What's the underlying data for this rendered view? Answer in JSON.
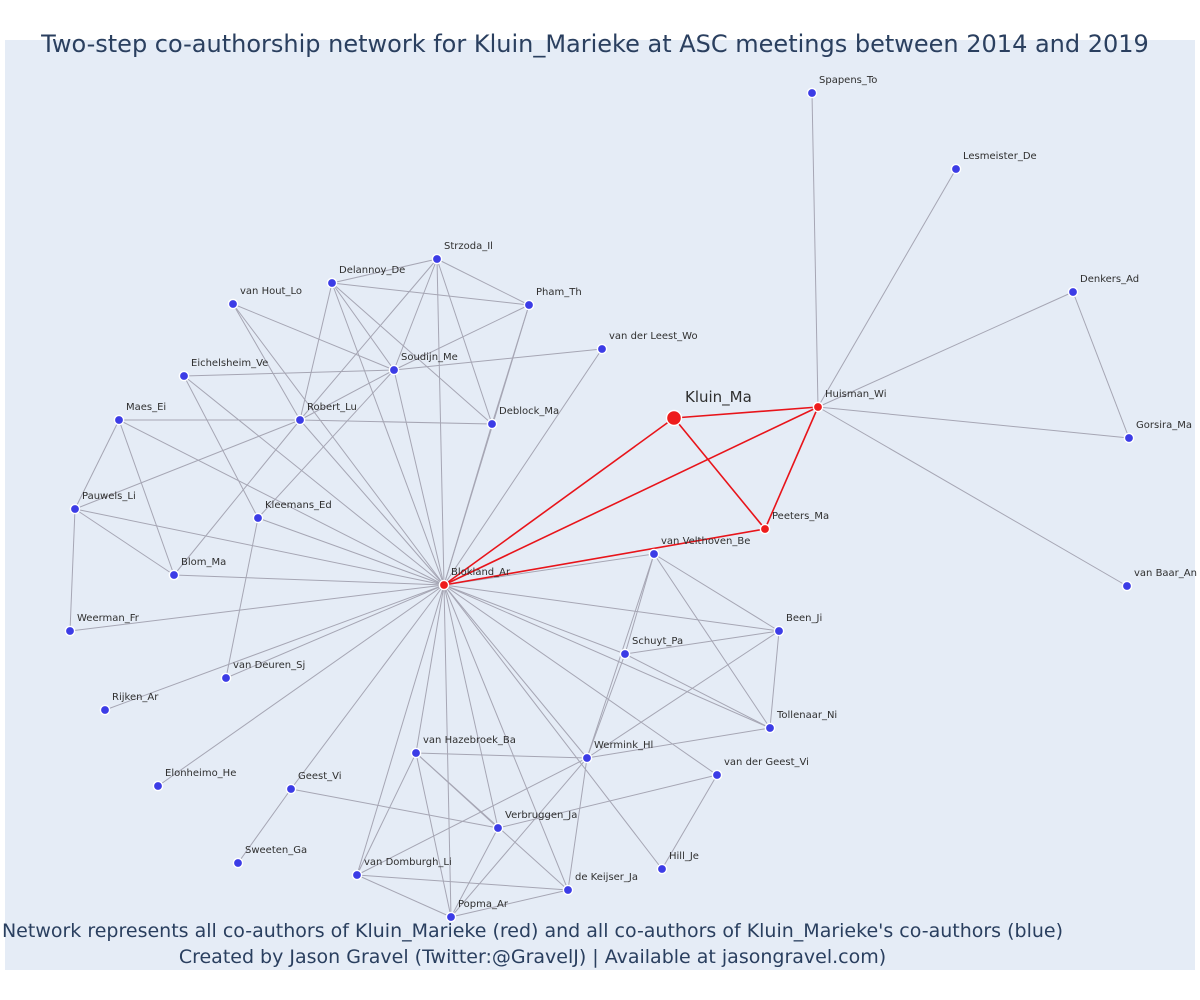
{
  "title": "Two-step co-authorship network for Kluin_Marieke at ASC meetings between 2014 and 2019",
  "caption": {
    "line1": "Network represents all co-authors of Kluin_Marieke (red) and all co-authors of Kluin_Marieke's co-authors (blue)",
    "line2": "Created by Jason Gravel (Twitter:@GravelJ) | Available at jasongravel.com)"
  },
  "colors": {
    "background": "#e5ecf6",
    "title_text": "#2a3f5f",
    "direct_coauthor": "#ee1c1c",
    "second_step_coauthor": "#3c3ce6",
    "edge_direct": "#e8141a",
    "edge_other": "#a6a6b4"
  },
  "network": {
    "ego": "Kluin_Ma",
    "nodes": [
      {
        "id": "Kluin_Ma",
        "group": "ego"
      },
      {
        "id": "Huisman_Wi",
        "group": "direct"
      },
      {
        "id": "Peeters_Ma",
        "group": "direct"
      },
      {
        "id": "Blokland_Ar",
        "group": "direct"
      },
      {
        "id": "Spapens_To",
        "group": "second"
      },
      {
        "id": "Lesmeister_De",
        "group": "second"
      },
      {
        "id": "Denkers_Ad",
        "group": "second"
      },
      {
        "id": "Gorsira_Ma",
        "group": "second"
      },
      {
        "id": "van Baar_An",
        "group": "second"
      },
      {
        "id": "Strzoda_Il",
        "group": "second"
      },
      {
        "id": "Delannoy_De",
        "group": "second"
      },
      {
        "id": "Pham_Th",
        "group": "second"
      },
      {
        "id": "van Hout_Lo",
        "group": "second"
      },
      {
        "id": "van der Leest_Wo",
        "group": "second"
      },
      {
        "id": "Soudijn_Me",
        "group": "second"
      },
      {
        "id": "Eichelsheim_Ve",
        "group": "second"
      },
      {
        "id": "Maes_Ei",
        "group": "second"
      },
      {
        "id": "Robert_Lu",
        "group": "second"
      },
      {
        "id": "Deblock_Ma",
        "group": "second"
      },
      {
        "id": "Pauwels_Li",
        "group": "second"
      },
      {
        "id": "Kleemans_Ed",
        "group": "second"
      },
      {
        "id": "Blom_Ma",
        "group": "second"
      },
      {
        "id": "Weerman_Fr",
        "group": "second"
      },
      {
        "id": "van Deuren_Sj",
        "group": "second"
      },
      {
        "id": "Rijken_Ar",
        "group": "second"
      },
      {
        "id": "Elonheimo_He",
        "group": "second"
      },
      {
        "id": "Geest_Vi",
        "group": "second"
      },
      {
        "id": "Sweeten_Ga",
        "group": "second"
      },
      {
        "id": "van Velthoven_Be",
        "group": "second"
      },
      {
        "id": "Been_Ji",
        "group": "second"
      },
      {
        "id": "Schuyt_Pa",
        "group": "second"
      },
      {
        "id": "Tollenaar_Ni",
        "group": "second"
      },
      {
        "id": "Wermink_Hl",
        "group": "second"
      },
      {
        "id": "van der Geest_Vi",
        "group": "second"
      },
      {
        "id": "van Hazebroek_Ba",
        "group": "second"
      },
      {
        "id": "Verbruggen_Ja",
        "group": "second"
      },
      {
        "id": "Hill_Je",
        "group": "second"
      },
      {
        "id": "van Domburgh_Li",
        "group": "second"
      },
      {
        "id": "de Keijser_Ja",
        "group": "second"
      },
      {
        "id": "Popma_Ar",
        "group": "second"
      }
    ],
    "edges": [
      [
        "Kluin_Ma",
        "Huisman_Wi"
      ],
      [
        "Kluin_Ma",
        "Peeters_Ma"
      ],
      [
        "Kluin_Ma",
        "Blokland_Ar"
      ],
      [
        "Huisman_Wi",
        "Peeters_Ma"
      ],
      [
        "Huisman_Wi",
        "Blokland_Ar"
      ],
      [
        "Peeters_Ma",
        "Blokland_Ar"
      ],
      [
        "Huisman_Wi",
        "Spapens_To"
      ],
      [
        "Huisman_Wi",
        "Lesmeister_De"
      ],
      [
        "Huisman_Wi",
        "Denkers_Ad"
      ],
      [
        "Huisman_Wi",
        "Gorsira_Ma"
      ],
      [
        "Huisman_Wi",
        "van Baar_An"
      ],
      [
        "Denkers_Ad",
        "Gorsira_Ma"
      ],
      [
        "Blokland_Ar",
        "Strzoda_Il"
      ],
      [
        "Blokland_Ar",
        "Delannoy_De"
      ],
      [
        "Blokland_Ar",
        "Pham_Th"
      ],
      [
        "Blokland_Ar",
        "van Hout_Lo"
      ],
      [
        "Blokland_Ar",
        "van der Leest_Wo"
      ],
      [
        "Blokland_Ar",
        "Soudijn_Me"
      ],
      [
        "Blokland_Ar",
        "Eichelsheim_Ve"
      ],
      [
        "Blokland_Ar",
        "Maes_Ei"
      ],
      [
        "Blokland_Ar",
        "Robert_Lu"
      ],
      [
        "Blokland_Ar",
        "Deblock_Ma"
      ],
      [
        "Blokland_Ar",
        "Pauwels_Li"
      ],
      [
        "Blokland_Ar",
        "Kleemans_Ed"
      ],
      [
        "Blokland_Ar",
        "Blom_Ma"
      ],
      [
        "Blokland_Ar",
        "Weerman_Fr"
      ],
      [
        "Blokland_Ar",
        "van Deuren_Sj"
      ],
      [
        "Blokland_Ar",
        "Rijken_Ar"
      ],
      [
        "Blokland_Ar",
        "Elonheimo_He"
      ],
      [
        "Blokland_Ar",
        "Geest_Vi"
      ],
      [
        "Blokland_Ar",
        "van Velthoven_Be"
      ],
      [
        "Blokland_Ar",
        "Been_Ji"
      ],
      [
        "Blokland_Ar",
        "Schuyt_Pa"
      ],
      [
        "Blokland_Ar",
        "Tollenaar_Ni"
      ],
      [
        "Blokland_Ar",
        "Wermink_Hl"
      ],
      [
        "Blokland_Ar",
        "van der Geest_Vi"
      ],
      [
        "Blokland_Ar",
        "van Hazebroek_Ba"
      ],
      [
        "Blokland_Ar",
        "Verbruggen_Ja"
      ],
      [
        "Blokland_Ar",
        "Hill_Je"
      ],
      [
        "Blokland_Ar",
        "van Domburgh_Li"
      ],
      [
        "Blokland_Ar",
        "de Keijser_Ja"
      ],
      [
        "Blokland_Ar",
        "Popma_Ar"
      ],
      [
        "Strzoda_Il",
        "Delannoy_De"
      ],
      [
        "Strzoda_Il",
        "Pham_Th"
      ],
      [
        "Strzoda_Il",
        "Soudijn_Me"
      ],
      [
        "Strzoda_Il",
        "Robert_Lu"
      ],
      [
        "Strzoda_Il",
        "Deblock_Ma"
      ],
      [
        "Delannoy_De",
        "Pham_Th"
      ],
      [
        "Delannoy_De",
        "Soudijn_Me"
      ],
      [
        "Delannoy_De",
        "Robert_Lu"
      ],
      [
        "Delannoy_De",
        "Deblock_Ma"
      ],
      [
        "Pham_Th",
        "Soudijn_Me"
      ],
      [
        "Pham_Th",
        "Deblock_Ma"
      ],
      [
        "van Hout_Lo",
        "Soudijn_Me"
      ],
      [
        "van Hout_Lo",
        "Robert_Lu"
      ],
      [
        "Soudijn_Me",
        "van der Leest_Wo"
      ],
      [
        "Soudijn_Me",
        "Eichelsheim_Ve"
      ],
      [
        "Soudijn_Me",
        "Robert_Lu"
      ],
      [
        "Soudijn_Me",
        "Kleemans_Ed"
      ],
      [
        "Eichelsheim_Ve",
        "Kleemans_Ed"
      ],
      [
        "Maes_Ei",
        "Robert_Lu"
      ],
      [
        "Maes_Ei",
        "Pauwels_Li"
      ],
      [
        "Maes_Ei",
        "Blom_Ma"
      ],
      [
        "Robert_Lu",
        "Deblock_Ma"
      ],
      [
        "Robert_Lu",
        "Pauwels_Li"
      ],
      [
        "Robert_Lu",
        "Blom_Ma"
      ],
      [
        "Pauwels_Li",
        "Blom_Ma"
      ],
      [
        "Pauwels_Li",
        "Weerman_Fr"
      ],
      [
        "Kleemans_Ed",
        "van Deuren_Sj"
      ],
      [
        "Geest_Vi",
        "Sweeten_Ga"
      ],
      [
        "Geest_Vi",
        "Verbruggen_Ja"
      ],
      [
        "van Velthoven_Be",
        "Been_Ji"
      ],
      [
        "van Velthoven_Be",
        "Schuyt_Pa"
      ],
      [
        "van Velthoven_Be",
        "Tollenaar_Ni"
      ],
      [
        "van Velthoven_Be",
        "Wermink_Hl"
      ],
      [
        "Been_Ji",
        "Schuyt_Pa"
      ],
      [
        "Been_Ji",
        "Tollenaar_Ni"
      ],
      [
        "Been_Ji",
        "Wermink_Hl"
      ],
      [
        "Schuyt_Pa",
        "Tollenaar_Ni"
      ],
      [
        "Schuyt_Pa",
        "Wermink_Hl"
      ],
      [
        "Tollenaar_Ni",
        "Wermink_Hl"
      ],
      [
        "Wermink_Hl",
        "van Hazebroek_Ba"
      ],
      [
        "Wermink_Hl",
        "van Domburgh_Li"
      ],
      [
        "Wermink_Hl",
        "de Keijser_Ja"
      ],
      [
        "Wermink_Hl",
        "Popma_Ar"
      ],
      [
        "van der Geest_Vi",
        "Verbruggen_Ja"
      ],
      [
        "van der Geest_Vi",
        "Hill_Je"
      ],
      [
        "van Hazebroek_Ba",
        "Verbruggen_Ja"
      ],
      [
        "van Hazebroek_Ba",
        "van Domburgh_Li"
      ],
      [
        "van Hazebroek_Ba",
        "de Keijser_Ja"
      ],
      [
        "van Hazebroek_Ba",
        "Popma_Ar"
      ],
      [
        "Verbruggen_Ja",
        "Popma_Ar"
      ],
      [
        "van Domburgh_Li",
        "de Keijser_Ja"
      ],
      [
        "van Domburgh_Li",
        "Popma_Ar"
      ],
      [
        "de Keijser_Ja",
        "Popma_Ar"
      ]
    ]
  }
}
